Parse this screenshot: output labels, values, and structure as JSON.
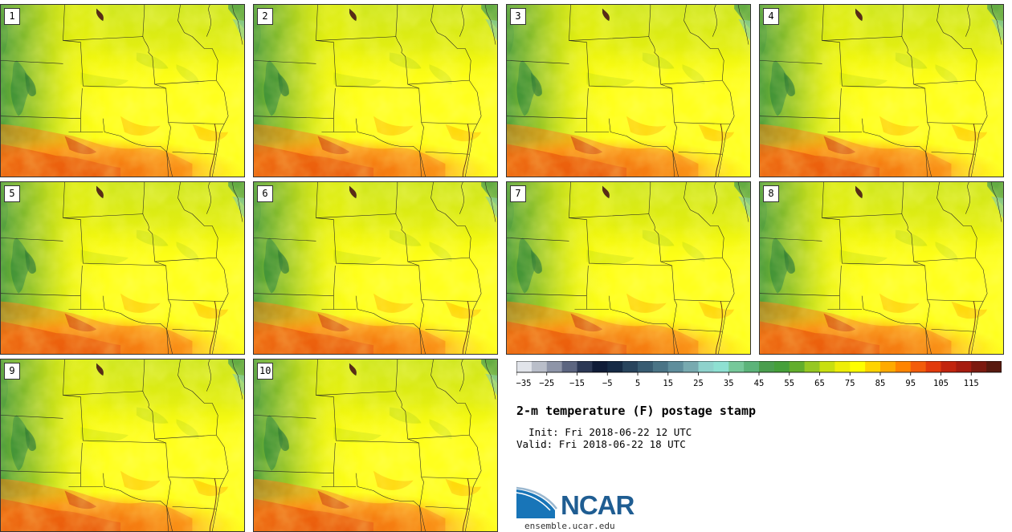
{
  "title": "2-m temperature (F) postage stamp",
  "init_label": "Init:",
  "init_time": "Fri 2018-06-22 12 UTC",
  "valid_label": "Valid:",
  "valid_time": "Fri 2018-06-22 18 UTC",
  "logo": {
    "name": "NCAR",
    "url": "ensemble.ucar.edu"
  },
  "members": [
    "1",
    "2",
    "3",
    "4",
    "5",
    "6",
    "7",
    "8",
    "9",
    "10"
  ],
  "colorbar": {
    "min": -35,
    "max": 125,
    "step": 5,
    "tick_labels": [
      "−35",
      "−25",
      "−15",
      "−5",
      "5",
      "15",
      "25",
      "35",
      "45",
      "55",
      "65",
      "75",
      "85",
      "95",
      "105",
      "115"
    ],
    "colors": [
      "#e1e4ea",
      "#b9bec9",
      "#8e95a8",
      "#5c6580",
      "#2c3855",
      "#101c38",
      "#162a45",
      "#28445d",
      "#385c72",
      "#4a7486",
      "#5f8e9c",
      "#78aab0",
      "#8ed2cc",
      "#8ee0d2",
      "#76c89a",
      "#5cb47a",
      "#4a9e4e",
      "#45a03a",
      "#62ae2c",
      "#96c822",
      "#c8df10",
      "#eeee08",
      "#ffff00",
      "#ffd400",
      "#ffaa00",
      "#ff8400",
      "#f35c0a",
      "#e23a0c",
      "#c2240e",
      "#a61c10",
      "#7c1a10",
      "#581a10"
    ]
  }
}
